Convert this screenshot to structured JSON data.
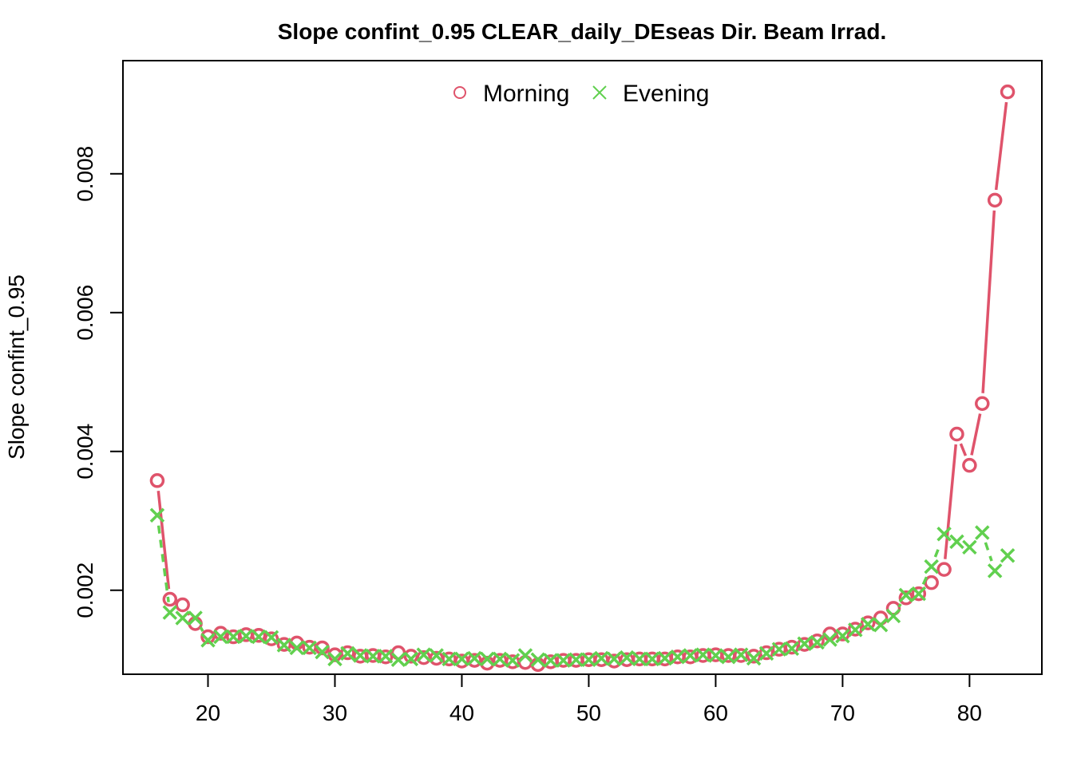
{
  "chart_data": {
    "type": "line",
    "title": "Slope confint_0.95 CLEAR_daily_DEseas Dir. Beam Irrad.",
    "xlabel": "",
    "ylabel": "Slope confint_0.95",
    "xlim": [
      13.3,
      85.7
    ],
    "ylim": [
      0.00079,
      0.00963
    ],
    "x_ticks": [
      20,
      30,
      40,
      50,
      60,
      70,
      80
    ],
    "y_ticks": [
      0.002,
      0.004,
      0.006,
      0.008
    ],
    "x_tick_labels": [
      "20",
      "30",
      "40",
      "50",
      "60",
      "70",
      "80"
    ],
    "y_tick_labels": [
      "0.002",
      "0.004",
      "0.006",
      "0.008"
    ],
    "legend_position": "top-center",
    "grid": false,
    "x": [
      16,
      17,
      18,
      19,
      20,
      21,
      22,
      23,
      24,
      25,
      26,
      27,
      28,
      29,
      30,
      31,
      32,
      33,
      34,
      35,
      36,
      37,
      38,
      39,
      40,
      41,
      42,
      43,
      44,
      45,
      46,
      47,
      48,
      49,
      50,
      51,
      52,
      53,
      54,
      55,
      56,
      57,
      58,
      59,
      60,
      61,
      62,
      63,
      64,
      65,
      66,
      67,
      68,
      69,
      70,
      71,
      72,
      73,
      74,
      75,
      76,
      77,
      78,
      79,
      80,
      81,
      82,
      83
    ],
    "series": [
      {
        "name": "Morning",
        "color": "#DF536B",
        "marker": "circle",
        "line_style": "solid",
        "values": [
          0.00358,
          0.00187,
          0.00179,
          0.00152,
          0.00133,
          0.00138,
          0.00133,
          0.00136,
          0.00135,
          0.0013,
          0.00122,
          0.00124,
          0.00118,
          0.00117,
          0.00107,
          0.0011,
          0.00105,
          0.00106,
          0.00104,
          0.0011,
          0.00105,
          0.00103,
          0.00102,
          0.00101,
          0.00098,
          0.00099,
          0.00095,
          0.00099,
          0.00097,
          0.00096,
          0.00093,
          0.00097,
          0.00099,
          0.00099,
          0.001,
          0.001,
          0.00098,
          0.001,
          0.00101,
          0.00101,
          0.00101,
          0.00104,
          0.00104,
          0.00106,
          0.00107,
          0.00106,
          0.00106,
          0.00105,
          0.0011,
          0.00115,
          0.00118,
          0.00122,
          0.00127,
          0.00137,
          0.00137,
          0.00144,
          0.00153,
          0.0016,
          0.00174,
          0.00189,
          0.00195,
          0.00211,
          0.0023,
          0.00425,
          0.0038,
          0.00469,
          0.00762,
          0.00918
        ]
      },
      {
        "name": "Evening",
        "color": "#61D04F",
        "marker": "cross",
        "line_style": "dashed",
        "values": [
          0.00308,
          0.00168,
          0.0016,
          0.0016,
          0.00128,
          0.00133,
          0.00133,
          0.00134,
          0.00133,
          0.00132,
          0.00121,
          0.00117,
          0.00117,
          0.00111,
          0.00101,
          0.00109,
          0.00106,
          0.00105,
          0.00105,
          0.001,
          0.00101,
          0.00107,
          0.00106,
          0.00101,
          0.00101,
          0.00102,
          0.00101,
          0.00101,
          0.00099,
          0.00106,
          0.001,
          0.00099,
          0.00099,
          0.001,
          0.001,
          0.00102,
          0.00101,
          0.00103,
          0.00101,
          0.00101,
          0.00102,
          0.00104,
          0.00106,
          0.00107,
          0.00106,
          0.00104,
          0.00107,
          0.00102,
          0.00109,
          0.00115,
          0.00116,
          0.00123,
          0.00125,
          0.00129,
          0.00134,
          0.00143,
          0.00151,
          0.0015,
          0.00163,
          0.00193,
          0.00195,
          0.00234,
          0.00281,
          0.0027,
          0.00262,
          0.00283,
          0.00228,
          0.0025
        ]
      }
    ]
  }
}
